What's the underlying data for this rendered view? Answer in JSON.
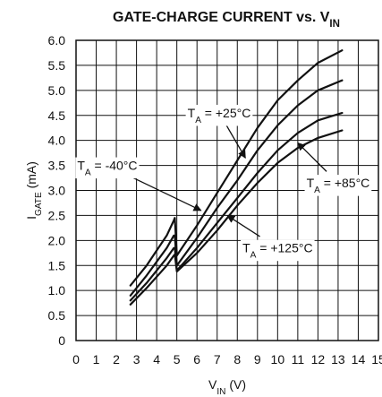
{
  "chart_data": {
    "type": "line",
    "title": "GATE-CHARGE CURRENT vs. V",
    "title_subscript": "IN",
    "xlabel": "V",
    "xlabel_subscript": "IN",
    "xlabel_unit": " (V)",
    "ylabel": "I",
    "ylabel_subscript": "GATE",
    "ylabel_unit": " (mA)",
    "xlim": [
      0,
      15
    ],
    "ylim": [
      0,
      6.0
    ],
    "xticks": [
      "0",
      "1",
      "2",
      "3",
      "4",
      "5",
      "6",
      "7",
      "8",
      "9",
      "10",
      "11",
      "12",
      "13",
      "14",
      "15"
    ],
    "yticks": [
      "0",
      "0.5",
      "1.0",
      "1.5",
      "2.0",
      "2.5",
      "3.0",
      "3.5",
      "4.0",
      "4.5",
      "5.0",
      "5.5",
      "6.0"
    ],
    "grid": true,
    "series": [
      {
        "name": "T_A = -40°C",
        "label_main": "T",
        "label_sub": "A",
        "label_rest": " = -40°C",
        "x": [
          2.7,
          3.5,
          4.5,
          4.85,
          4.9,
          5.0,
          6,
          7,
          8,
          9,
          10,
          11,
          12,
          13.2
        ],
        "y": [
          1.1,
          1.5,
          2.1,
          2.4,
          2.45,
          1.7,
          2.3,
          2.95,
          3.6,
          4.25,
          4.8,
          5.2,
          5.55,
          5.8
        ]
      },
      {
        "name": "T_A = +25°C",
        "label_main": "T",
        "label_sub": "A",
        "label_rest": " = +25°C",
        "x": [
          2.7,
          3.5,
          4.5,
          4.85,
          4.9,
          5.0,
          6,
          7,
          8,
          9,
          10,
          11,
          12,
          13.2
        ],
        "y": [
          0.9,
          1.3,
          1.85,
          2.1,
          2.1,
          1.5,
          2.05,
          2.65,
          3.2,
          3.8,
          4.3,
          4.7,
          5.0,
          5.2
        ]
      },
      {
        "name": "T_A = +85°C",
        "label_main": "T",
        "label_sub": "A",
        "label_rest": " = +85°C",
        "x": [
          2.7,
          3.5,
          4.5,
          4.85,
          4.9,
          5.0,
          6,
          7,
          8,
          9,
          10,
          11,
          12,
          13.2
        ],
        "y": [
          0.8,
          1.15,
          1.65,
          1.85,
          1.85,
          1.4,
          1.85,
          2.35,
          2.85,
          3.35,
          3.8,
          4.15,
          4.4,
          4.55
        ]
      },
      {
        "name": "T_A = +125°C",
        "label_main": "T",
        "label_sub": "A",
        "label_rest": " = +125°C",
        "x": [
          2.7,
          3.5,
          4.5,
          4.85,
          4.9,
          5.0,
          6,
          7,
          8,
          9,
          10,
          11,
          12,
          13.2
        ],
        "y": [
          0.72,
          1.05,
          1.5,
          1.7,
          1.72,
          1.38,
          1.75,
          2.2,
          2.7,
          3.15,
          3.55,
          3.85,
          4.05,
          4.2
        ]
      }
    ],
    "annotations": [
      {
        "series": 1,
        "label_x": 7.1,
        "label_y": 4.55,
        "arrow_to_x": 8.4,
        "arrow_to_y": 3.65
      },
      {
        "series": 0,
        "label_x": 1.55,
        "label_y": 3.5,
        "arrow_to_x": 6.2,
        "arrow_to_y": 2.6
      },
      {
        "series": 2,
        "label_x": 13.0,
        "label_y": 3.15,
        "arrow_to_x": 11.0,
        "arrow_to_y": 3.95
      },
      {
        "series": 3,
        "label_x": 10.0,
        "label_y": 1.85,
        "arrow_to_x": 7.5,
        "arrow_to_y": 2.5
      }
    ]
  }
}
